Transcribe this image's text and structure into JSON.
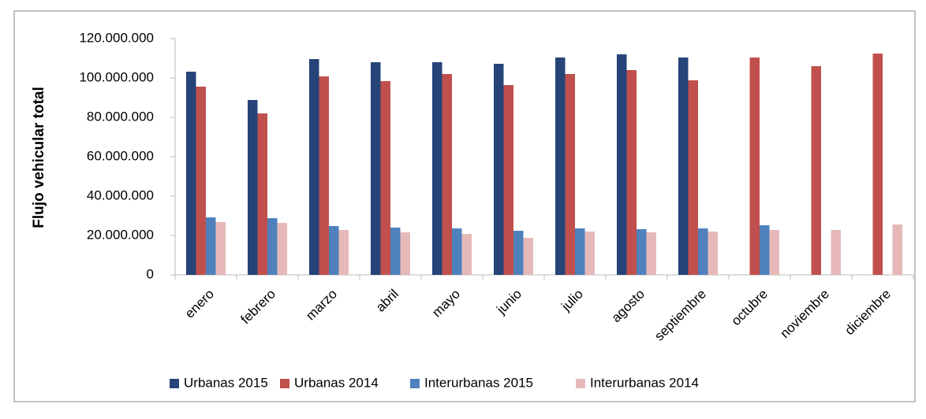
{
  "chart_data": {
    "type": "bar",
    "y_label": "Flujo vehicular total",
    "categories": [
      "enero",
      "febrero",
      "marzo",
      "abril",
      "mayo",
      "junio",
      "julio",
      "agosto",
      "septiembre",
      "octubre",
      "noviembre",
      "diciembre"
    ],
    "series": [
      {
        "name": "Urbanas 2015",
        "color": "#264478",
        "values": [
          103200000,
          88800000,
          109600000,
          108000000,
          108000000,
          107200000,
          110400000,
          112000000,
          110400000,
          null,
          null,
          null
        ]
      },
      {
        "name": "Urbanas 2014",
        "color": "#c0504d",
        "values": [
          95600000,
          82000000,
          100800000,
          98400000,
          102000000,
          96400000,
          102000000,
          104000000,
          98800000,
          110400000,
          106000000,
          112400000
        ]
      },
      {
        "name": "Interurbanas 2015",
        "color": "#4f81bd",
        "values": [
          29200000,
          28800000,
          24800000,
          24000000,
          23600000,
          22400000,
          23600000,
          23200000,
          23600000,
          25200000,
          null,
          null
        ]
      },
      {
        "name": "Interurbanas 2014",
        "color": "#e6b9b8",
        "values": [
          26800000,
          26400000,
          22800000,
          21600000,
          20800000,
          18800000,
          22000000,
          21600000,
          22000000,
          22800000,
          22800000,
          25600000
        ]
      }
    ],
    "ylim": [
      0,
      120000000
    ],
    "yticks": [
      0,
      {
        "value": 20000000,
        "label": "20.000.000"
      },
      {
        "value": 40000000,
        "label": "40.000.000"
      },
      {
        "value": 60000000,
        "label": "60.000.000"
      },
      {
        "value": 80000000,
        "label": "80.000.000"
      },
      {
        "value": 100000000,
        "label": "100.000.000"
      },
      {
        "value": 120000000,
        "label": "120.000.000"
      }
    ],
    "legend": "bottom"
  }
}
